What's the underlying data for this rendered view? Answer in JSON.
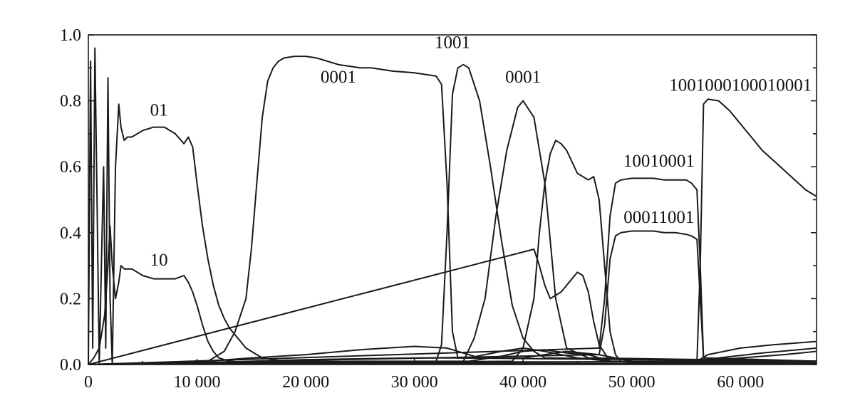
{
  "chart_data": {
    "type": "line",
    "xlim": [
      0,
      67000
    ],
    "ylim": [
      0,
      1.0
    ],
    "grid": false,
    "legend": "none",
    "x_ticks": [
      {
        "value": 0,
        "label": "0"
      },
      {
        "value": 10000,
        "label": "10 000"
      },
      {
        "value": 20000,
        "label": "20 000"
      },
      {
        "value": 30000,
        "label": "30 000"
      },
      {
        "value": 40000,
        "label": "40 000"
      },
      {
        "value": 50000,
        "label": "50 000"
      },
      {
        "value": 60000,
        "label": "60 000"
      }
    ],
    "y_ticks": [
      {
        "value": 0.0,
        "label": "0.0"
      },
      {
        "value": 0.2,
        "label": "0.2"
      },
      {
        "value": 0.4,
        "label": "0.4"
      },
      {
        "value": 0.6,
        "label": "0.6"
      },
      {
        "value": 0.8,
        "label": "0.8"
      },
      {
        "value": 1.0,
        "label": "1.0"
      }
    ],
    "annotations": [
      {
        "text": "01",
        "x": 6500,
        "y": 0.755
      },
      {
        "text": "10",
        "x": 6500,
        "y": 0.3
      },
      {
        "text": "0001",
        "x": 23000,
        "y": 0.855
      },
      {
        "text": "1001",
        "x": 33500,
        "y": 0.96
      },
      {
        "text": "0001",
        "x": 40000,
        "y": 0.855
      },
      {
        "text": "1001000100010001",
        "x": 60000,
        "y": 0.83
      },
      {
        "text": "10010001",
        "x": 52500,
        "y": 0.6
      },
      {
        "text": "00011001",
        "x": 52500,
        "y": 0.43
      }
    ],
    "series": [
      {
        "x": [
          0,
          200,
          400,
          600,
          800,
          1000,
          1200,
          1400,
          1600,
          1800,
          2000,
          2200,
          2500,
          2800,
          3000,
          3300,
          3600,
          4000,
          5000,
          6000,
          7000,
          8000,
          8800,
          9200,
          9600,
          10000,
          10500,
          11000,
          11500,
          12000,
          12500,
          13000,
          13500,
          14000,
          14500,
          15000,
          15500,
          16000,
          17000,
          18000,
          20000,
          25000,
          30000,
          35000,
          40000,
          45000,
          50000,
          55000,
          60000,
          67000
        ],
        "y": [
          0.0,
          0.92,
          0.05,
          0.96,
          0.5,
          0.0,
          0.3,
          0.6,
          0.05,
          0.87,
          0.2,
          0.0,
          0.6,
          0.79,
          0.72,
          0.68,
          0.69,
          0.69,
          0.71,
          0.72,
          0.72,
          0.7,
          0.67,
          0.69,
          0.66,
          0.55,
          0.42,
          0.32,
          0.24,
          0.18,
          0.14,
          0.11,
          0.09,
          0.07,
          0.05,
          0.04,
          0.03,
          0.02,
          0.015,
          0.01,
          0.01,
          0.008,
          0.008,
          0.008,
          0.008,
          0.008,
          0.008,
          0.008,
          0.01,
          0.01
        ]
      },
      {
        "x": [
          0,
          500,
          1000,
          1500,
          1800,
          2000,
          2200,
          2500,
          2800,
          3000,
          3300,
          4000,
          5000,
          6000,
          7000,
          8000,
          8800,
          9200,
          9600,
          10000,
          10500,
          11000,
          11500,
          12000,
          13000,
          14000,
          15000,
          16000,
          18000,
          67000
        ],
        "y": [
          0.0,
          0.02,
          0.05,
          0.15,
          0.3,
          0.42,
          0.3,
          0.2,
          0.25,
          0.3,
          0.29,
          0.29,
          0.27,
          0.26,
          0.26,
          0.26,
          0.27,
          0.25,
          0.22,
          0.18,
          0.12,
          0.07,
          0.04,
          0.02,
          0.01,
          0.008,
          0.005,
          0.004,
          0.003,
          0.003
        ]
      },
      {
        "x": [
          0,
          11000,
          12500,
          13500,
          14500,
          15000,
          15500,
          16000,
          16500,
          17000,
          17500,
          18000,
          19000,
          20000,
          21000,
          22000,
          23000,
          24000,
          25000,
          26000,
          28000,
          30000,
          32000,
          32500,
          33000,
          33500,
          34000,
          67000
        ],
        "y": [
          0.0,
          0.01,
          0.04,
          0.1,
          0.2,
          0.35,
          0.55,
          0.75,
          0.86,
          0.9,
          0.92,
          0.93,
          0.935,
          0.935,
          0.93,
          0.92,
          0.91,
          0.905,
          0.9,
          0.9,
          0.89,
          0.885,
          0.875,
          0.85,
          0.55,
          0.1,
          0.02,
          0.01
        ]
      },
      {
        "x": [
          0,
          32000,
          32500,
          33000,
          33500,
          34000,
          34500,
          35000,
          36000,
          37000,
          38000,
          39000,
          40000,
          41000,
          42000,
          67000
        ],
        "y": [
          0.0,
          0.01,
          0.06,
          0.4,
          0.82,
          0.9,
          0.91,
          0.9,
          0.8,
          0.6,
          0.38,
          0.18,
          0.08,
          0.04,
          0.02,
          0.01
        ]
      },
      {
        "x": [
          0,
          34500,
          35500,
          36500,
          37500,
          38500,
          39500,
          40000,
          41000,
          42000,
          43000,
          44000,
          46000,
          67000
        ],
        "y": [
          0.0,
          0.01,
          0.08,
          0.2,
          0.45,
          0.65,
          0.78,
          0.8,
          0.75,
          0.55,
          0.2,
          0.05,
          0.02,
          0.01
        ]
      },
      {
        "x": [
          0,
          39000,
          40000,
          41000,
          41500,
          42000,
          42500,
          43000,
          43500,
          44000,
          45000,
          46000,
          46500,
          47000,
          47500,
          48000,
          48500,
          49000,
          50000,
          67000
        ],
        "y": [
          0.0,
          0.01,
          0.05,
          0.2,
          0.4,
          0.55,
          0.64,
          0.68,
          0.67,
          0.65,
          0.58,
          0.56,
          0.57,
          0.5,
          0.3,
          0.1,
          0.03,
          0.01,
          0.005,
          0.005
        ]
      },
      {
        "x": [
          0,
          41000,
          41500,
          42000,
          42500,
          43500,
          44500,
          45000,
          45500,
          46000,
          46500,
          47000,
          48000,
          67000
        ],
        "y": [
          0.0,
          0.35,
          0.3,
          0.24,
          0.2,
          0.22,
          0.26,
          0.28,
          0.27,
          0.22,
          0.13,
          0.06,
          0.01,
          0.005
        ]
      },
      {
        "x": [
          0,
          47000,
          47500,
          48000,
          48500,
          49000,
          50000,
          51000,
          52000,
          53000,
          54000,
          55000,
          55500,
          56000,
          56300,
          56600,
          67000
        ],
        "y": [
          0.0,
          0.05,
          0.2,
          0.45,
          0.55,
          0.56,
          0.565,
          0.565,
          0.565,
          0.56,
          0.56,
          0.56,
          0.55,
          0.53,
          0.3,
          0.02,
          0.01
        ]
      },
      {
        "x": [
          0,
          47000,
          47500,
          48000,
          48500,
          49000,
          50000,
          51000,
          52000,
          53000,
          54000,
          55000,
          55500,
          56000,
          56300,
          56600,
          67000
        ],
        "y": [
          0.0,
          0.03,
          0.12,
          0.32,
          0.39,
          0.4,
          0.405,
          0.405,
          0.405,
          0.4,
          0.4,
          0.395,
          0.39,
          0.38,
          0.2,
          0.02,
          0.01
        ]
      },
      {
        "x": [
          0,
          56000,
          56300,
          56600,
          57000,
          58000,
          59000,
          60000,
          61000,
          62000,
          63000,
          64000,
          65000,
          66000,
          67000
        ],
        "y": [
          0.0,
          0.01,
          0.3,
          0.79,
          0.805,
          0.8,
          0.77,
          0.73,
          0.69,
          0.65,
          0.62,
          0.59,
          0.56,
          0.53,
          0.51
        ]
      },
      {
        "x": [
          0,
          5000,
          10000,
          15000,
          20000,
          25000,
          30000,
          33000,
          36000,
          40000,
          44000,
          47000,
          50000,
          56000,
          57000,
          60000,
          63000,
          67000
        ],
        "y": [
          0.0,
          0.005,
          0.008,
          0.02,
          0.03,
          0.045,
          0.055,
          0.05,
          0.02,
          0.02,
          0.04,
          0.03,
          0.01,
          0.01,
          0.03,
          0.05,
          0.06,
          0.07
        ]
      },
      {
        "x": [
          0,
          10000,
          15000,
          20000,
          30000,
          35000,
          38000,
          40000,
          42000,
          45000,
          48000,
          56000,
          58000,
          62000,
          67000
        ],
        "y": [
          0.0,
          0.005,
          0.01,
          0.015,
          0.02,
          0.02,
          0.04,
          0.05,
          0.04,
          0.02,
          0.01,
          0.01,
          0.02,
          0.035,
          0.05
        ]
      },
      {
        "x": [
          0,
          12000,
          16000,
          25000,
          35000,
          38000,
          40000,
          42000,
          44000,
          46000,
          48000,
          56000,
          60000,
          64000,
          67000
        ],
        "y": [
          0.0,
          0.003,
          0.008,
          0.01,
          0.01,
          0.025,
          0.04,
          0.045,
          0.035,
          0.03,
          0.01,
          0.008,
          0.02,
          0.03,
          0.04
        ]
      }
    ]
  }
}
